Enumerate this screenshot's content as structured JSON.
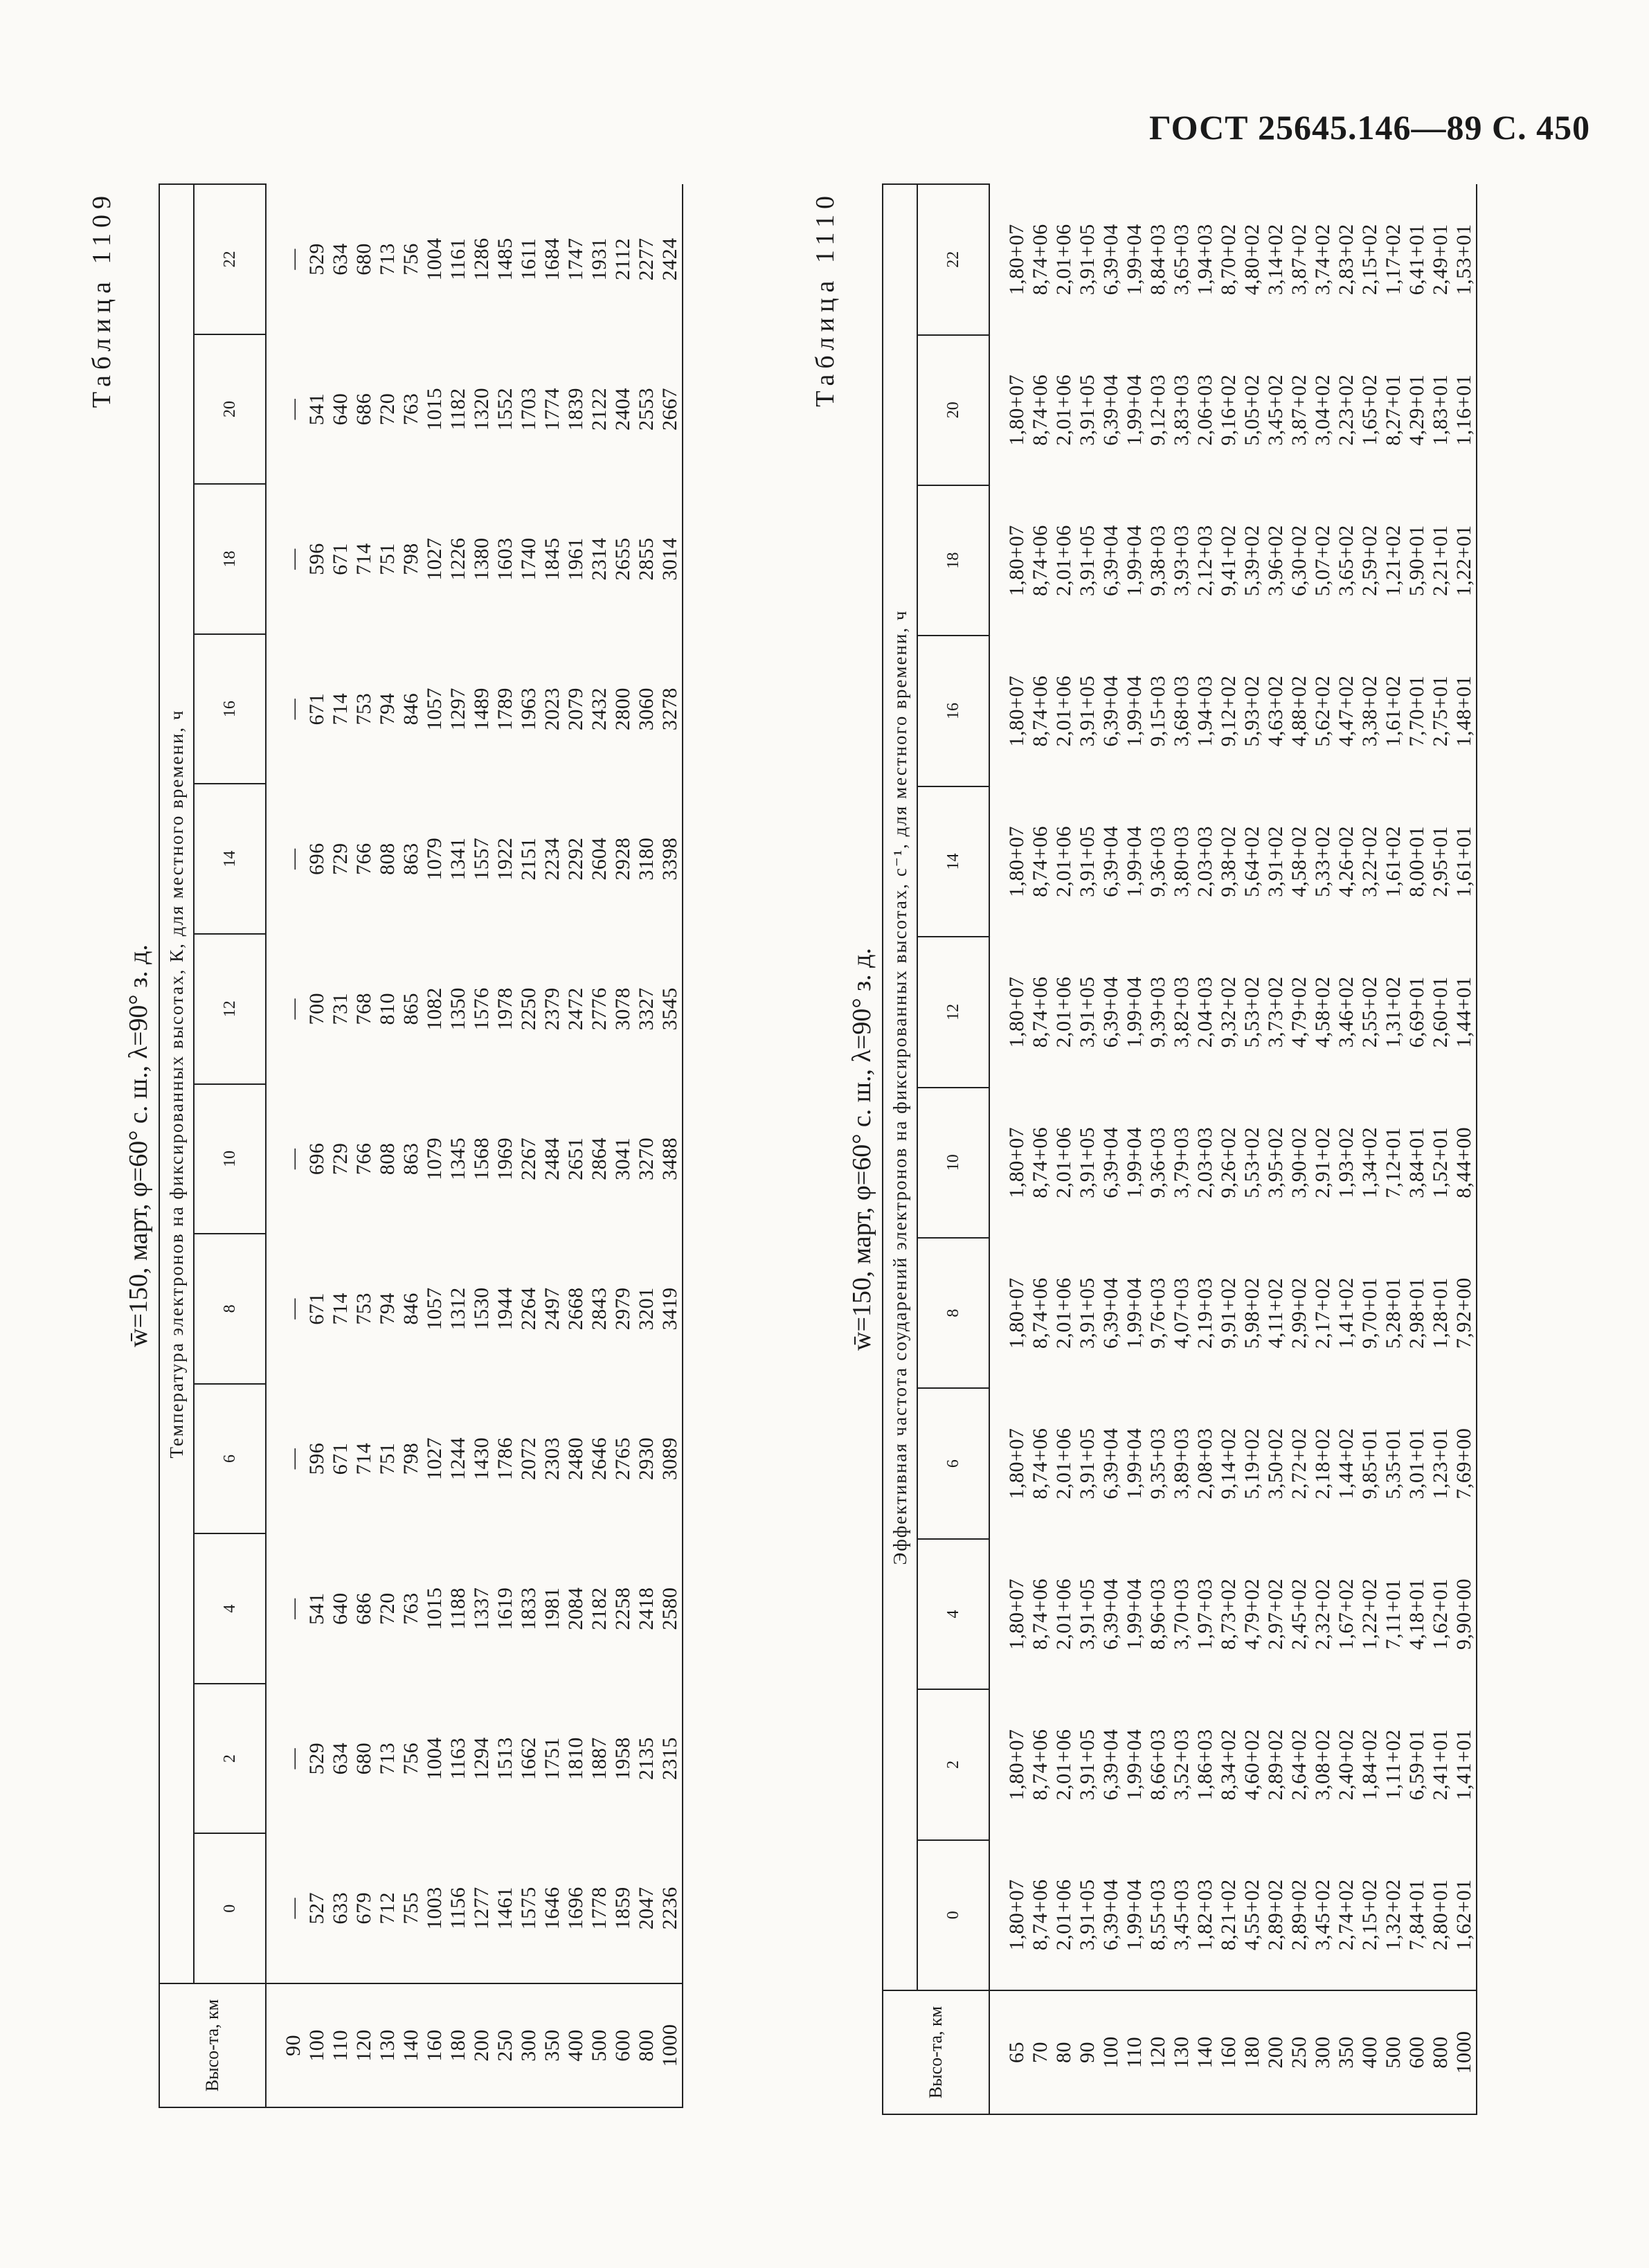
{
  "header": {
    "title": "ГОСТ 25645.146—89 С. 450"
  },
  "tables": [
    {
      "label": "Таблица 1109",
      "subtitle": "w̄=150, март, φ=60° с. ш., λ=90° з. д.",
      "row_header": "Высо-та, км",
      "column_group": "Температура электронов на фиксированных высотах, К, для местного времени, ч",
      "heights": [
        "90",
        "100",
        "110",
        "120",
        "130",
        "140",
        "160",
        "180",
        "200",
        "250",
        "300",
        "350",
        "400",
        "500",
        "600",
        "800",
        "1000"
      ],
      "columns": [
        {
          "label": "0",
          "values": [
            "—",
            "527",
            "633",
            "679",
            "712",
            "755",
            "1003",
            "1156",
            "1277",
            "1461",
            "1575",
            "1646",
            "1696",
            "1778",
            "1859",
            "2047",
            "2236"
          ]
        },
        {
          "label": "2",
          "values": [
            "—",
            "529",
            "634",
            "680",
            "713",
            "756",
            "1004",
            "1163",
            "1294",
            "1513",
            "1662",
            "1751",
            "1810",
            "1887",
            "1958",
            "2135",
            "2315"
          ]
        },
        {
          "label": "4",
          "values": [
            "—",
            "541",
            "640",
            "686",
            "720",
            "763",
            "1015",
            "1188",
            "1337",
            "1619",
            "1833",
            "1981",
            "2084",
            "2182",
            "2258",
            "2418",
            "2580"
          ]
        },
        {
          "label": "6",
          "values": [
            "—",
            "596",
            "671",
            "714",
            "751",
            "798",
            "1027",
            "1244",
            "1430",
            "1786",
            "2072",
            "2303",
            "2480",
            "2646",
            "2765",
            "2930",
            "3089"
          ]
        },
        {
          "label": "8",
          "values": [
            "—",
            "671",
            "714",
            "753",
            "794",
            "846",
            "1057",
            "1312",
            "1530",
            "1944",
            "2264",
            "2497",
            "2668",
            "2843",
            "2979",
            "3201",
            "3419"
          ]
        },
        {
          "label": "10",
          "values": [
            "—",
            "696",
            "729",
            "766",
            "808",
            "863",
            "1079",
            "1345",
            "1568",
            "1969",
            "2267",
            "2484",
            "2651",
            "2864",
            "3041",
            "3270",
            "3488"
          ]
        },
        {
          "label": "12",
          "values": [
            "—",
            "700",
            "731",
            "768",
            "810",
            "865",
            "1082",
            "1350",
            "1576",
            "1978",
            "2250",
            "2379",
            "2472",
            "2776",
            "3078",
            "3327",
            "3545"
          ]
        },
        {
          "label": "14",
          "values": [
            "—",
            "696",
            "729",
            "766",
            "808",
            "863",
            "1079",
            "1341",
            "1557",
            "1922",
            "2151",
            "2234",
            "2292",
            "2604",
            "2928",
            "3180",
            "3398"
          ]
        },
        {
          "label": "16",
          "values": [
            "—",
            "671",
            "714",
            "753",
            "794",
            "846",
            "1057",
            "1297",
            "1489",
            "1789",
            "1963",
            "2023",
            "2079",
            "2432",
            "2800",
            "3060",
            "3278"
          ]
        },
        {
          "label": "18",
          "values": [
            "—",
            "596",
            "671",
            "714",
            "751",
            "798",
            "1027",
            "1226",
            "1380",
            "1603",
            "1740",
            "1845",
            "1961",
            "2314",
            "2655",
            "2855",
            "3014"
          ]
        },
        {
          "label": "20",
          "values": [
            "—",
            "541",
            "640",
            "686",
            "720",
            "763",
            "1015",
            "1182",
            "1320",
            "1552",
            "1703",
            "1774",
            "1839",
            "2122",
            "2404",
            "2553",
            "2667"
          ]
        },
        {
          "label": "22",
          "values": [
            "—",
            "529",
            "634",
            "680",
            "713",
            "756",
            "1004",
            "1161",
            "1286",
            "1485",
            "1611",
            "1684",
            "1747",
            "1931",
            "2112",
            "2277",
            "2424"
          ]
        }
      ]
    },
    {
      "label": "Таблица 1110",
      "subtitle": "w̄=150, март, φ=60° с. ш., λ=90° з. д.",
      "row_header": "Высо-та, км",
      "column_group": "Эффективная частота соударений электронов на фиксированных высотах, с⁻¹, для местного времени, ч",
      "heights": [
        "65",
        "70",
        "80",
        "90",
        "100",
        "110",
        "120",
        "130",
        "140",
        "160",
        "180",
        "200",
        "250",
        "300",
        "350",
        "400",
        "500",
        "600",
        "800",
        "1000"
      ],
      "columns": [
        {
          "label": "0",
          "values": [
            "1,80+07",
            "8,74+06",
            "2,01+06",
            "3,91+05",
            "6,39+04",
            "1,99+04",
            "8,55+03",
            "3,45+03",
            "1,82+03",
            "8,21+02",
            "4,55+02",
            "2,89+02",
            "2,89+02",
            "3,45+02",
            "2,74+02",
            "2,15+02",
            "1,32+02",
            "7,84+01",
            "2,80+01",
            "1,62+01"
          ]
        },
        {
          "label": "2",
          "values": [
            "1,80+07",
            "8,74+06",
            "2,01+06",
            "3,91+05",
            "6,39+04",
            "1,99+04",
            "8,66+03",
            "3,52+03",
            "1,86+03",
            "8,34+02",
            "4,60+02",
            "2,89+02",
            "2,64+02",
            "3,08+02",
            "2,40+02",
            "1,84+02",
            "1,11+02",
            "6,59+01",
            "2,41+01",
            "1,41+01"
          ]
        },
        {
          "label": "4",
          "values": [
            "1,80+07",
            "8,74+06",
            "2,01+06",
            "3,91+05",
            "6,39+04",
            "1,99+04",
            "8,96+03",
            "3,70+03",
            "1,97+03",
            "8,73+02",
            "4,79+02",
            "2,97+02",
            "2,45+02",
            "2,32+02",
            "1,67+02",
            "1,22+02",
            "7,11+01",
            "4,18+01",
            "1,62+01",
            "9,90+00"
          ]
        },
        {
          "label": "6",
          "values": [
            "1,80+07",
            "8,74+06",
            "2,01+06",
            "3,91+05",
            "6,39+04",
            "1,99+04",
            "9,35+03",
            "3,89+03",
            "2,08+03",
            "9,14+02",
            "5,19+02",
            "3,50+02",
            "2,72+02",
            "2,18+02",
            "1,44+02",
            "9,85+01",
            "5,35+01",
            "3,01+01",
            "1,23+01",
            "7,69+00"
          ]
        },
        {
          "label": "8",
          "values": [
            "1,80+07",
            "8,74+06",
            "2,01+06",
            "3,91+05",
            "6,39+04",
            "1,99+04",
            "9,76+03",
            "4,07+03",
            "2,19+03",
            "9,91+02",
            "5,98+02",
            "4,11+02",
            "2,99+02",
            "2,17+02",
            "1,41+02",
            "9,70+01",
            "5,28+01",
            "2,98+01",
            "1,28+01",
            "7,92+00"
          ]
        },
        {
          "label": "10",
          "values": [
            "1,80+07",
            "8,74+06",
            "2,01+06",
            "3,91+05",
            "6,39+04",
            "1,99+04",
            "9,36+03",
            "3,79+03",
            "2,03+03",
            "9,26+02",
            "5,53+02",
            "3,95+02",
            "3,90+02",
            "2,91+02",
            "1,93+02",
            "1,34+02",
            "7,12+01",
            "3,84+01",
            "1,52+01",
            "8,44+00"
          ]
        },
        {
          "label": "12",
          "values": [
            "1,80+07",
            "8,74+06",
            "2,01+06",
            "3,91+05",
            "6,39+04",
            "1,99+04",
            "9,39+03",
            "3,82+03",
            "2,04+03",
            "9,32+02",
            "5,53+02",
            "3,73+02",
            "4,79+02",
            "4,58+02",
            "3,46+02",
            "2,55+02",
            "1,31+02",
            "6,69+01",
            "2,60+01",
            "1,44+01"
          ]
        },
        {
          "label": "14",
          "values": [
            "1,80+07",
            "8,74+06",
            "2,01+06",
            "3,91+05",
            "6,39+04",
            "1,99+04",
            "9,36+03",
            "3,80+03",
            "2,03+03",
            "9,38+02",
            "5,64+02",
            "3,91+02",
            "4,58+02",
            "5,33+02",
            "4,26+02",
            "3,22+02",
            "1,61+02",
            "8,00+01",
            "2,95+01",
            "1,61+01"
          ]
        },
        {
          "label": "16",
          "values": [
            "1,80+07",
            "8,74+06",
            "2,01+06",
            "3,91+05",
            "6,39+04",
            "1,99+04",
            "9,15+03",
            "3,68+03",
            "1,94+03",
            "9,12+02",
            "5,93+02",
            "4,63+02",
            "4,88+02",
            "5,62+02",
            "4,47+02",
            "3,38+02",
            "1,61+02",
            "7,70+01",
            "2,75+01",
            "1,48+01"
          ]
        },
        {
          "label": "18",
          "values": [
            "1,80+07",
            "8,74+06",
            "2,01+06",
            "3,91+05",
            "6,39+04",
            "1,99+04",
            "9,38+03",
            "3,93+03",
            "2,12+03",
            "9,41+02",
            "5,39+02",
            "3,96+02",
            "6,30+02",
            "5,07+02",
            "3,65+02",
            "2,59+02",
            "1,21+02",
            "5,90+01",
            "2,21+01",
            "1,22+01"
          ]
        },
        {
          "label": "20",
          "values": [
            "1,80+07",
            "8,74+06",
            "2,01+06",
            "3,91+05",
            "6,39+04",
            "1,99+04",
            "9,12+03",
            "3,83+03",
            "2,06+03",
            "9,16+02",
            "5,05+02",
            "3,45+02",
            "3,87+02",
            "3,04+02",
            "2,23+02",
            "1,65+02",
            "8,27+01",
            "4,29+01",
            "1,83+01",
            "1,16+01"
          ]
        },
        {
          "label": "22",
          "values": [
            "1,80+07",
            "8,74+06",
            "2,01+06",
            "3,91+05",
            "6,39+04",
            "1,99+04",
            "8,84+03",
            "3,65+03",
            "1,94+03",
            "8,70+02",
            "4,80+02",
            "3,14+02",
            "3,87+02",
            "3,74+02",
            "2,83+02",
            "2,15+02",
            "1,17+02",
            "6,41+01",
            "2,49+01",
            "1,53+01"
          ]
        }
      ]
    }
  ]
}
